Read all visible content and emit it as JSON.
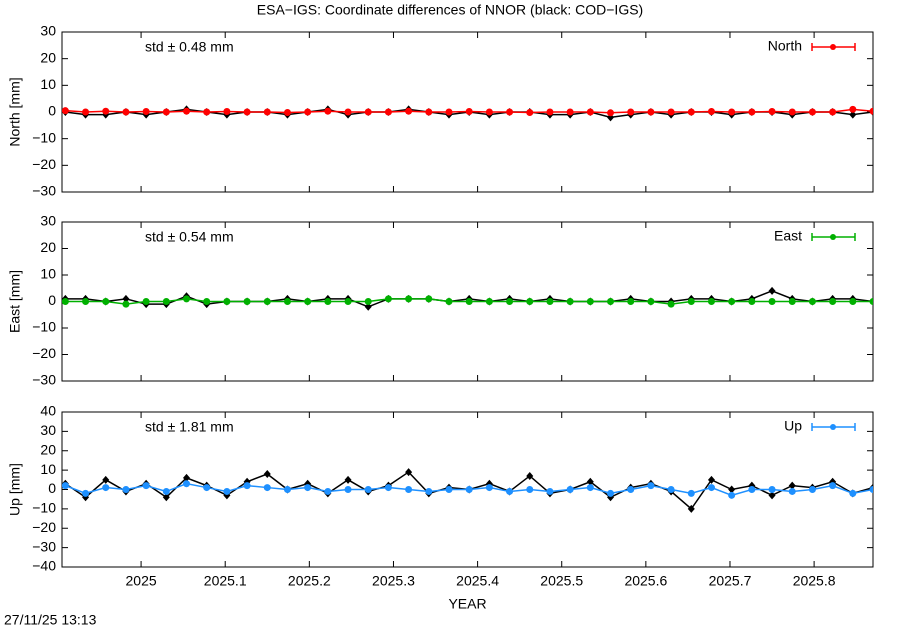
{
  "title": "ESA−IGS: Coordinate differences of NNOR (black: COD−IGS)",
  "timestamp": "27/11/25 13:13",
  "chart_data": [
    {
      "type": "line",
      "ylabel": "North [mm]",
      "annotation": "std ± 0.48 mm",
      "legend": "top-right",
      "xlim": [
        2024.906,
        2025.87
      ],
      "ylim": [
        -30,
        30
      ],
      "yticks": [
        {
          "value": -30,
          "label": "−30"
        },
        {
          "value": -20,
          "label": "−20"
        },
        {
          "value": -10,
          "label": "−10"
        },
        0,
        10,
        20,
        30
      ],
      "x": [
        2024.91,
        2024.934,
        2024.958,
        2024.982,
        2025.006,
        2025.03,
        2025.054,
        2025.078,
        2025.102,
        2025.126,
        2025.15,
        2025.174,
        2025.198,
        2025.222,
        2025.246,
        2025.27,
        2025.294,
        2025.318,
        2025.342,
        2025.366,
        2025.39,
        2025.414,
        2025.438,
        2025.462,
        2025.486,
        2025.51,
        2025.534,
        2025.558,
        2025.582,
        2025.606,
        2025.63,
        2025.654,
        2025.678,
        2025.702,
        2025.726,
        2025.75,
        2025.774,
        2025.798,
        2025.822,
        2025.846,
        2025.87
      ],
      "series": [
        {
          "color": "#000000",
          "values": [
            0,
            -1,
            -1,
            0,
            -1,
            0,
            1,
            0,
            -1,
            0,
            0,
            -1,
            0,
            1,
            -1,
            0,
            0,
            1,
            0,
            -1,
            0,
            -1,
            0,
            0,
            -1,
            -1,
            0,
            -2,
            -1,
            0,
            -1,
            0,
            0,
            -1,
            0,
            0,
            -1,
            0,
            0,
            -1,
            0
          ]
        },
        {
          "name": "North",
          "color": "#ff0000",
          "values": [
            0.5,
            0,
            0.3,
            0,
            0.2,
            0,
            0.3,
            0,
            0.2,
            0,
            0,
            -0.2,
            0,
            0.3,
            0,
            0,
            0,
            0.3,
            0,
            0,
            0.2,
            0,
            0,
            -0.2,
            0,
            0,
            0,
            -0.3,
            0,
            0,
            0,
            0,
            0.2,
            0,
            0,
            0.2,
            0,
            0,
            0,
            1,
            0.3
          ]
        }
      ]
    },
    {
      "type": "line",
      "ylabel": "East [mm]",
      "annotation": "std ± 0.54 mm",
      "legend": "top-right",
      "xlim": [
        2024.906,
        2025.87
      ],
      "ylim": [
        -30,
        30
      ],
      "yticks": [
        {
          "value": -30,
          "label": "−30"
        },
        {
          "value": -20,
          "label": "−20"
        },
        {
          "value": -10,
          "label": "−10"
        },
        0,
        10,
        20,
        30
      ],
      "x": [
        2024.91,
        2024.934,
        2024.958,
        2024.982,
        2025.006,
        2025.03,
        2025.054,
        2025.078,
        2025.102,
        2025.126,
        2025.15,
        2025.174,
        2025.198,
        2025.222,
        2025.246,
        2025.27,
        2025.294,
        2025.318,
        2025.342,
        2025.366,
        2025.39,
        2025.414,
        2025.438,
        2025.462,
        2025.486,
        2025.51,
        2025.534,
        2025.558,
        2025.582,
        2025.606,
        2025.63,
        2025.654,
        2025.678,
        2025.702,
        2025.726,
        2025.75,
        2025.774,
        2025.798,
        2025.822,
        2025.846,
        2025.87
      ],
      "series": [
        {
          "color": "#000000",
          "values": [
            1,
            1,
            0,
            1,
            -1,
            -1,
            2,
            -1,
            0,
            0,
            0,
            1,
            0,
            1,
            1,
            -2,
            1,
            1,
            1,
            0,
            1,
            0,
            1,
            0,
            1,
            0,
            0,
            0,
            1,
            0,
            0,
            1,
            1,
            0,
            1,
            4,
            1,
            0,
            1,
            1,
            0
          ]
        },
        {
          "name": "East",
          "color": "#00b000",
          "values": [
            0,
            0,
            0,
            -1,
            0,
            0,
            1,
            0,
            0,
            0,
            0,
            0,
            0,
            0,
            0,
            0,
            1,
            1,
            1,
            0,
            0,
            0,
            0,
            0,
            0,
            0,
            0,
            0,
            0,
            0,
            -1,
            0,
            0,
            0,
            0,
            0,
            0,
            0,
            0,
            0,
            0
          ]
        }
      ]
    },
    {
      "type": "line",
      "ylabel": "Up [mm]",
      "xlabel": "YEAR",
      "annotation": "std ± 1.81 mm",
      "legend": "top-right",
      "xlim": [
        2024.906,
        2025.87
      ],
      "ylim": [
        -40,
        40
      ],
      "xticks": [
        2025,
        2025.1,
        2025.2,
        2025.3,
        2025.4,
        2025.5,
        2025.6,
        2025.7,
        2025.8
      ],
      "yticks": [
        {
          "value": -40,
          "label": "−40"
        },
        {
          "value": -30,
          "label": "−30"
        },
        {
          "value": -20,
          "label": "−20"
        },
        {
          "value": -10,
          "label": "−10"
        },
        0,
        10,
        20,
        30,
        40
      ],
      "x": [
        2024.91,
        2024.934,
        2024.958,
        2024.982,
        2025.006,
        2025.03,
        2025.054,
        2025.078,
        2025.102,
        2025.126,
        2025.15,
        2025.174,
        2025.198,
        2025.222,
        2025.246,
        2025.27,
        2025.294,
        2025.318,
        2025.342,
        2025.366,
        2025.39,
        2025.414,
        2025.438,
        2025.462,
        2025.486,
        2025.51,
        2025.534,
        2025.558,
        2025.582,
        2025.606,
        2025.63,
        2025.654,
        2025.678,
        2025.702,
        2025.726,
        2025.75,
        2025.774,
        2025.798,
        2025.822,
        2025.846,
        2025.87
      ],
      "series": [
        {
          "color": "#000000",
          "values": [
            3,
            -4,
            5,
            -1,
            3,
            -4,
            6,
            2,
            -3,
            4,
            8,
            0,
            3,
            -2,
            5,
            -1,
            2,
            9,
            -2,
            1,
            0,
            3,
            -1,
            7,
            -2,
            0,
            4,
            -4,
            1,
            3,
            -1,
            -10,
            5,
            0,
            2,
            -3,
            2,
            1,
            4,
            -2,
            1
          ]
        },
        {
          "name": "Up",
          "color": "#1e90ff",
          "values": [
            2,
            -2,
            1,
            0,
            2,
            -1,
            3,
            1,
            -1,
            2,
            1,
            0,
            1,
            -1,
            0,
            0,
            1,
            0,
            -1,
            0,
            0,
            1,
            -1,
            0,
            -1,
            0,
            1,
            -2,
            0,
            2,
            0,
            -2,
            1,
            -3,
            0,
            0,
            -1,
            0,
            2,
            -2,
            0
          ]
        }
      ]
    }
  ]
}
